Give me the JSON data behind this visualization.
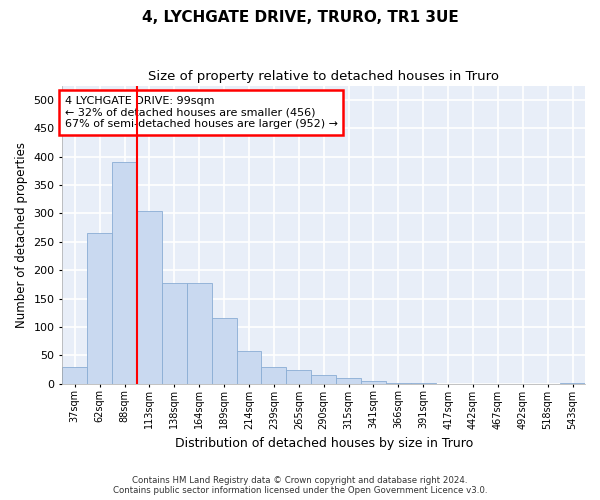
{
  "title": "4, LYCHGATE DRIVE, TRURO, TR1 3UE",
  "subtitle": "Size of property relative to detached houses in Truro",
  "xlabel": "Distribution of detached houses by size in Truro",
  "ylabel": "Number of detached properties",
  "bar_color": "#c9d9f0",
  "bar_edge_color": "#8aadd4",
  "background_color": "#e8eef8",
  "grid_color": "#ffffff",
  "categories": [
    "37sqm",
    "62sqm",
    "88sqm",
    "113sqm",
    "138sqm",
    "164sqm",
    "189sqm",
    "214sqm",
    "239sqm",
    "265sqm",
    "290sqm",
    "315sqm",
    "341sqm",
    "366sqm",
    "391sqm",
    "417sqm",
    "442sqm",
    "467sqm",
    "492sqm",
    "518sqm",
    "543sqm"
  ],
  "values": [
    30,
    265,
    390,
    305,
    178,
    178,
    115,
    58,
    30,
    25,
    15,
    10,
    5,
    2,
    1,
    0,
    0,
    0,
    0,
    0,
    2
  ],
  "ylim": [
    0,
    525
  ],
  "yticks": [
    0,
    50,
    100,
    150,
    200,
    250,
    300,
    350,
    400,
    450,
    500
  ],
  "marker_label": "4 LYCHGATE DRIVE: 99sqm",
  "annotation_line1": "← 32% of detached houses are smaller (456)",
  "annotation_line2": "67% of semi-detached houses are larger (952) →",
  "footer1": "Contains HM Land Registry data © Crown copyright and database right 2024.",
  "footer2": "Contains public sector information licensed under the Open Government Licence v3.0."
}
